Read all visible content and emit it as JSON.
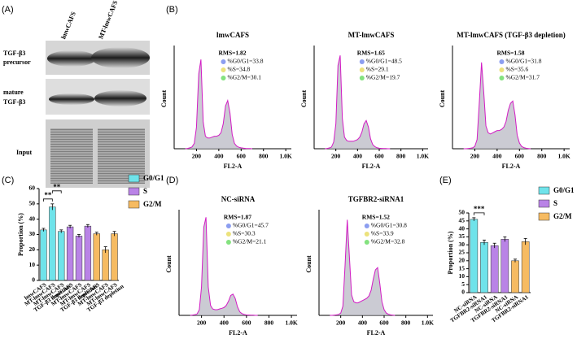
{
  "panels": [
    "(A)",
    "(B)",
    "(C)",
    "(D)",
    "(E)"
  ],
  "blot": {
    "columns": [
      "lmwCAFS",
      "MT-lmwCAFS"
    ],
    "rows": [
      [
        "TGF-β3",
        "precursor"
      ],
      [
        "mature",
        "TGF-β3"
      ],
      [
        "Input"
      ]
    ]
  },
  "chart_data": [
    {
      "type": "area",
      "title": "lmwCAFS",
      "xlabel": "FL2-A",
      "ylabel": "Count",
      "color": "#d21bc4",
      "fill": "#b9b9c4",
      "stats": {
        "rms": "RMS=1.82",
        "phases": [
          {
            "label": "%G0/G1=33.8",
            "color": "#8c9ef0"
          },
          {
            "label": "%S=34.8",
            "color": "#ece27c"
          },
          {
            "label": "%G2/M=30.1",
            "color": "#84e27f"
          }
        ]
      },
      "x": [
        100,
        120,
        140,
        160,
        180,
        200,
        220,
        240,
        260,
        280,
        300,
        320,
        340,
        360,
        380,
        400,
        420,
        440,
        460,
        480,
        500,
        520,
        540,
        560,
        580,
        600,
        620,
        640,
        660,
        680,
        700
      ],
      "values": [
        0,
        2,
        5,
        10,
        30,
        120,
        420,
        500,
        150,
        70,
        60,
        60,
        65,
        70,
        70,
        75,
        90,
        140,
        240,
        270,
        200,
        80,
        30,
        15,
        8,
        5,
        3,
        2,
        1,
        1,
        0
      ],
      "xlim": [
        0,
        1050
      ],
      "ylim": [
        0,
        560
      ],
      "xticks": [
        200,
        400,
        600,
        800,
        {
          "value": 1000,
          "label": "1.0K"
        }
      ]
    },
    {
      "type": "area",
      "title": "MT-lmwCAFS",
      "xlabel": "FL2-A",
      "ylabel": "Count",
      "color": "#d21bc4",
      "fill": "#b9b9c4",
      "stats": {
        "rms": "RMS=1.65",
        "phases": [
          {
            "label": "%G0/G1=48.5",
            "color": "#8c9ef0"
          },
          {
            "label": "%S=29.1",
            "color": "#ece27c"
          },
          {
            "label": "%G2/M=19.7",
            "color": "#84e27f"
          }
        ]
      },
      "x": [
        100,
        120,
        140,
        160,
        180,
        200,
        220,
        240,
        260,
        280,
        300,
        320,
        340,
        360,
        380,
        400,
        420,
        440,
        460,
        480,
        500,
        520,
        540,
        560,
        580,
        600,
        620,
        640,
        660,
        680,
        700
      ],
      "values": [
        0,
        2,
        5,
        10,
        40,
        150,
        500,
        560,
        180,
        70,
        50,
        45,
        45,
        45,
        50,
        55,
        70,
        100,
        150,
        170,
        130,
        60,
        25,
        12,
        6,
        3,
        2,
        1,
        1,
        0,
        0
      ],
      "xlim": [
        0,
        1050
      ],
      "ylim": [
        0,
        600
      ],
      "xticks": [
        200,
        400,
        600,
        800,
        {
          "value": 1000,
          "label": "1.0K"
        }
      ]
    },
    {
      "type": "area",
      "title": "MT-lmwCAFS (TGF-β3 depletion)",
      "xlabel": "FL2-A",
      "ylabel": "Count",
      "color": "#d21bc4",
      "fill": "#b9b9c4",
      "stats": {
        "rms": "RMS=1.58",
        "phases": [
          {
            "label": "%G0/G1=31.8",
            "color": "#8c9ef0"
          },
          {
            "label": "%S=35.6",
            "color": "#ece27c"
          },
          {
            "label": "%G2/M=31.7",
            "color": "#84e27f"
          }
        ]
      },
      "x": [
        100,
        120,
        140,
        160,
        180,
        200,
        220,
        240,
        260,
        280,
        300,
        320,
        340,
        360,
        380,
        400,
        420,
        440,
        460,
        480,
        500,
        520,
        540,
        560,
        580,
        600,
        620,
        640,
        660,
        680,
        700
      ],
      "values": [
        0,
        0,
        1,
        2,
        4,
        10,
        40,
        200,
        380,
        250,
        100,
        70,
        65,
        70,
        75,
        80,
        80,
        85,
        95,
        120,
        170,
        200,
        210,
        150,
        60,
        25,
        10,
        5,
        2,
        1,
        0
      ],
      "xlim": [
        0,
        1050
      ],
      "ylim": [
        0,
        440
      ],
      "xticks": [
        200,
        400,
        600,
        800,
        {
          "value": 1000,
          "label": "1.0K"
        }
      ]
    },
    {
      "type": "area",
      "title": "NC-siRNA",
      "xlabel": "FL2-A",
      "ylabel": "Count",
      "color": "#d21bc4",
      "fill": "#b9b9c4",
      "stats": {
        "rms": "RMS=1.87",
        "phases": [
          {
            "label": "%G0/G1=45.7",
            "color": "#8c9ef0"
          },
          {
            "label": "%S=30.3",
            "color": "#ece27c"
          },
          {
            "label": "%G2/M=21.1",
            "color": "#84e27f"
          }
        ]
      },
      "x": [
        100,
        120,
        140,
        160,
        180,
        200,
        220,
        240,
        260,
        280,
        300,
        320,
        340,
        360,
        380,
        400,
        420,
        440,
        460,
        480,
        500,
        520,
        540,
        560,
        580,
        600,
        620,
        640,
        660,
        680,
        700
      ],
      "values": [
        0,
        2,
        5,
        10,
        40,
        200,
        620,
        690,
        200,
        70,
        45,
        40,
        40,
        45,
        50,
        55,
        70,
        100,
        140,
        150,
        120,
        60,
        25,
        12,
        6,
        3,
        2,
        1,
        1,
        0,
        0
      ],
      "xlim": [
        0,
        1050
      ],
      "ylim": [
        0,
        720
      ],
      "xticks": [
        200,
        400,
        600,
        800,
        {
          "value": 1000,
          "label": "1.0K"
        }
      ]
    },
    {
      "type": "area",
      "title": "TGFBR2-siRNA1",
      "xlabel": "FL2-A",
      "ylabel": "Count",
      "color": "#d21bc4",
      "fill": "#b9b9c4",
      "stats": {
        "rms": "RMS=1.52",
        "phases": [
          {
            "label": "%G0/G1=30.8",
            "color": "#8c9ef0"
          },
          {
            "label": "%S=33.9",
            "color": "#ece27c"
          },
          {
            "label": "%G2/M=32.8",
            "color": "#84e27f"
          }
        ]
      },
      "x": [
        100,
        120,
        140,
        160,
        180,
        200,
        220,
        240,
        260,
        280,
        300,
        320,
        340,
        360,
        380,
        400,
        420,
        440,
        460,
        480,
        500,
        520,
        540,
        560,
        580,
        600,
        620,
        640,
        660,
        680,
        700
      ],
      "values": [
        0,
        0,
        1,
        2,
        4,
        10,
        40,
        220,
        420,
        260,
        90,
        60,
        55,
        55,
        60,
        65,
        70,
        75,
        85,
        110,
        160,
        200,
        210,
        140,
        60,
        25,
        10,
        5,
        2,
        1,
        0
      ],
      "xlim": [
        0,
        1050
      ],
      "ylim": [
        0,
        450
      ],
      "xticks": [
        200,
        400,
        600,
        800,
        {
          "value": 1000,
          "label": "1.0K"
        }
      ]
    },
    {
      "type": "bar",
      "ylabel": "Proportion (%)",
      "categories": [
        [
          "lmwCAFS"
        ],
        [
          "MT-lmwCAFS"
        ],
        [
          "MT-lmwCAFS",
          "TGF-β3 depletion"
        ]
      ],
      "series": [
        {
          "name": "G0/G1",
          "color": "#6fe3ea",
          "values": [
            33,
            48,
            32
          ],
          "errors": [
            1,
            2,
            1
          ]
        },
        {
          "name": "S",
          "color": "#b983e6",
          "values": [
            35,
            29,
            35.5
          ],
          "errors": [
            1,
            1,
            1
          ]
        },
        {
          "name": "G2/M",
          "color": "#f6bb62",
          "values": [
            30.5,
            20,
            30.5
          ],
          "errors": [
            1,
            2,
            1.5
          ]
        }
      ],
      "ylim": [
        0,
        60
      ],
      "yticks": [
        0,
        10,
        20,
        30,
        40,
        50,
        60
      ],
      "annotations": [
        "**",
        "**"
      ]
    },
    {
      "type": "bar",
      "ylabel": "Proportion (%)",
      "categories": [
        "NC-siRNA",
        "TGFBR2-siRNA1"
      ],
      "series": [
        {
          "name": "G0/G1",
          "color": "#6fe3ea",
          "values": [
            46,
            31.5
          ],
          "errors": [
            1,
            1.5
          ]
        },
        {
          "name": "S",
          "color": "#b983e6",
          "values": [
            29.5,
            33.5
          ],
          "errors": [
            1.5,
            1.5
          ]
        },
        {
          "name": "G2/M",
          "color": "#f6bb62",
          "values": [
            20,
            32
          ],
          "errors": [
            1,
            2
          ]
        }
      ],
      "ylim": [
        0,
        50
      ],
      "yticks": [
        0,
        5,
        10,
        15,
        20,
        25,
        30,
        35,
        40,
        45,
        50
      ],
      "annotations": [
        "***"
      ]
    }
  ]
}
